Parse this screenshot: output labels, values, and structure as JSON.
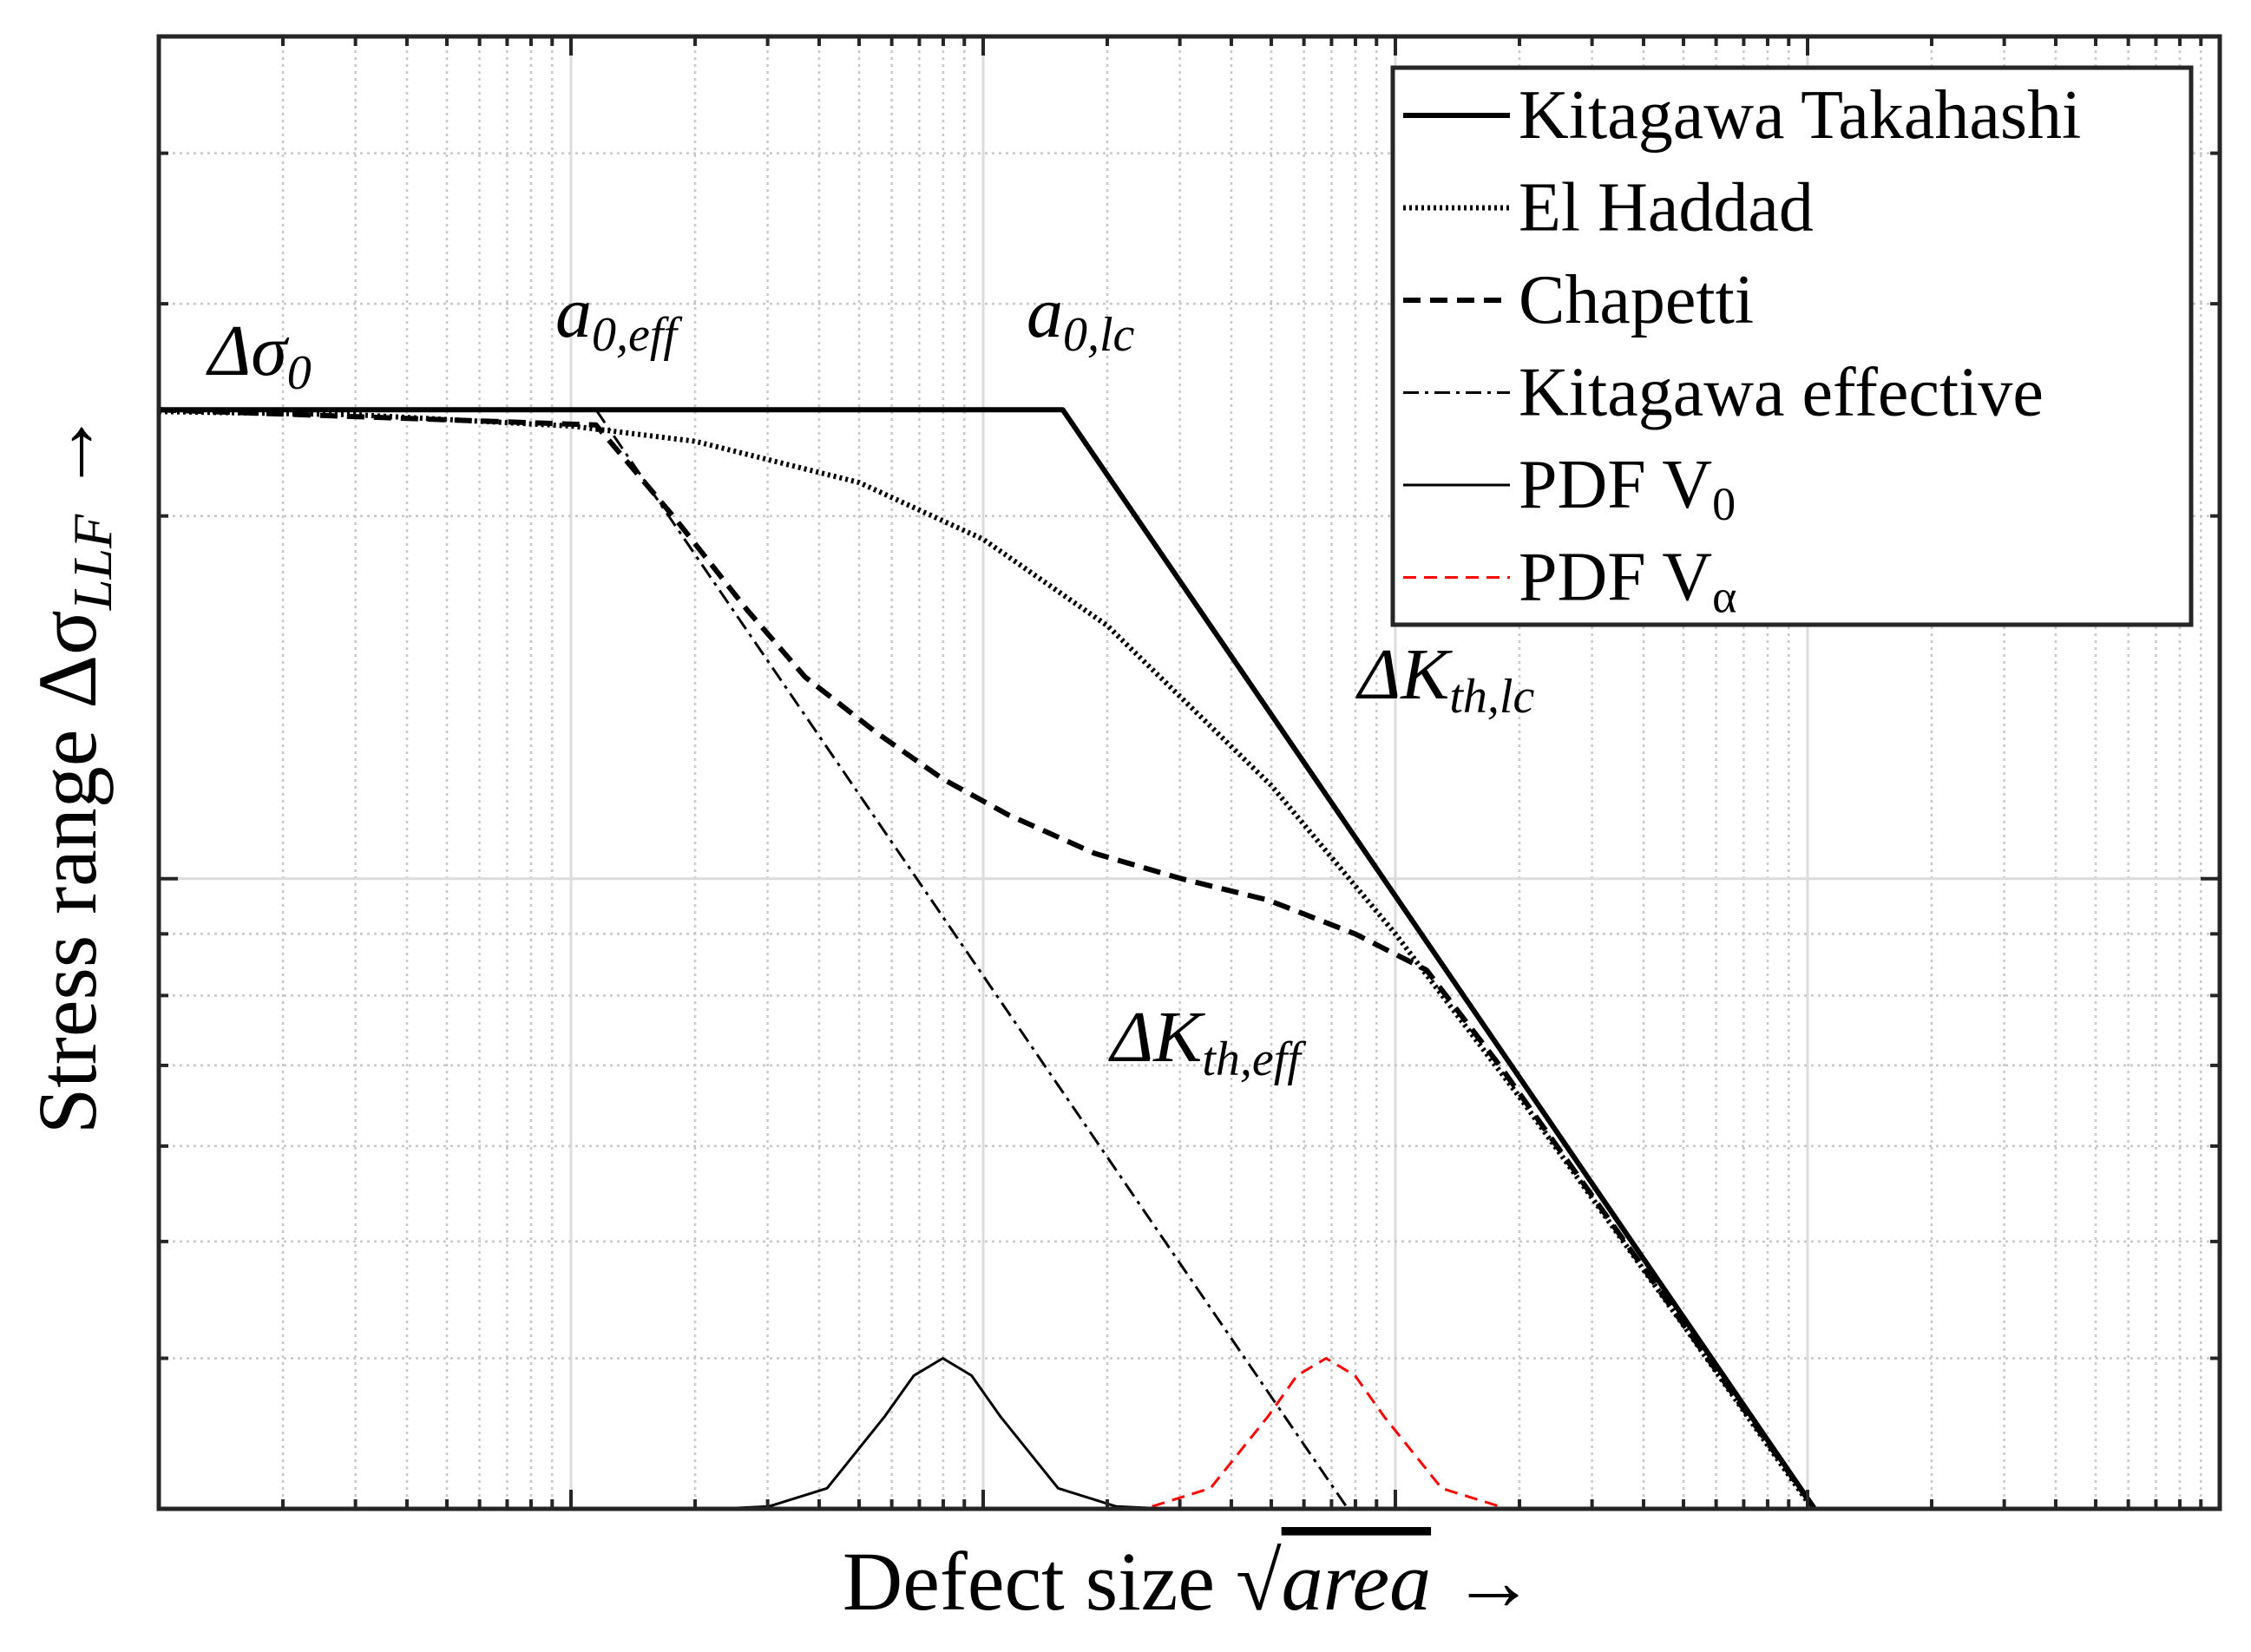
{
  "chart_data": {
    "type": "line",
    "xlabel": {
      "text": "Defect size ",
      "sqrt": "√",
      "var": "area",
      "arrow": " →"
    },
    "ylabel": {
      "text": "Stress range Δσ",
      "sub": "LLF",
      "arrow": " →"
    },
    "xscale": "log",
    "yscale": "log",
    "grid": true,
    "legend": "northeast",
    "xlim": [
      0.1,
      10000
    ],
    "xticks": [
      1,
      10,
      100,
      1000
    ],
    "xminorticks": [
      0.2,
      0.3,
      0.4,
      0.5,
      0.6,
      0.7,
      0.8,
      0.9,
      2,
      3,
      4,
      5,
      6,
      7,
      8,
      9,
      20,
      30,
      40,
      50,
      60,
      70,
      80,
      90,
      200,
      300,
      400,
      500,
      600,
      700,
      800,
      900,
      2000,
      3000,
      4000,
      5000,
      6000,
      7000,
      8000,
      9000
    ],
    "ylim": [
      30,
      500
    ],
    "yticks": [
      100
    ],
    "yminorticks": [
      40,
      50,
      60,
      70,
      80,
      90,
      200,
      300,
      400
    ],
    "annotations": [
      {
        "text": "Δσ",
        "sub": "0"
      },
      {
        "text": "a",
        "sub": "0,eff"
      },
      {
        "text": "a",
        "sub": "0,lc"
      },
      {
        "text": "ΔK",
        "sub": "th,lc"
      },
      {
        "text": "ΔK",
        "sub": "th,eff"
      }
    ],
    "series": [
      {
        "name": "Kitagawa Takahashi",
        "color": "#000000",
        "linestyle": "solid",
        "width": "thick",
        "x": [
          0.1,
          15.6,
          1040
        ],
        "values": [
          245,
          245,
          30
        ]
      },
      {
        "name": "El Haddad",
        "color": "#000000",
        "linestyle": "dotted",
        "width": "thick",
        "x": [
          0.1,
          0.3,
          1,
          2,
          5,
          10,
          20,
          50,
          100,
          200,
          500,
          1000,
          1020
        ],
        "values": [
          244.2,
          242.7,
          237.5,
          230.7,
          213.2,
          191.3,
          162.2,
          119.5,
          90.0,
          65.9,
          42.6,
          30.4,
          30.1
        ]
      },
      {
        "name": "Chapetti",
        "color": "#000000",
        "linestyle": "dashed",
        "width": "thick",
        "x": [
          0.1,
          1.15,
          1.79,
          2.68,
          3.7,
          5.54,
          7.98,
          11.5,
          18.6,
          30.3,
          49.1,
          79.8,
          119,
          179,
          1040
        ],
        "values": [
          245,
          238,
          199,
          167,
          147,
          132,
          121,
          113,
          105,
          100,
          96,
          90,
          84,
          70,
          30
        ]
      },
      {
        "name": "Kitagawa effective",
        "color": "#000000",
        "linestyle": "dashdot",
        "width": "thin",
        "x": [
          0.1,
          1.15,
          76.7
        ],
        "values": [
          245,
          245,
          30
        ]
      },
      {
        "name": "PDF V",
        "name_sub": "0",
        "color": "#000000",
        "linestyle": "solid",
        "width": "thin",
        "x": [
          2.28,
          3.02,
          4.18,
          5.77,
          6.79,
          7.98,
          9.37,
          11.0,
          15.2,
          21.0,
          27.9
        ],
        "values": [
          30,
          30.14,
          31.2,
          35.8,
          38.7,
          40.0,
          38.7,
          35.8,
          31.2,
          30.14,
          30
        ]
      },
      {
        "name": "PDF V",
        "name_sub": "α",
        "color": "#ff0000",
        "linestyle": "dashed",
        "width": "thin",
        "x": [
          25.7,
          35.6,
          49.1,
          57.7,
          67.9,
          79.8,
          93.8,
          129.5,
          178.9
        ],
        "values": [
          30.14,
          31.2,
          35.8,
          38.7,
          40.0,
          38.7,
          35.8,
          31.2,
          30.14
        ]
      }
    ]
  }
}
